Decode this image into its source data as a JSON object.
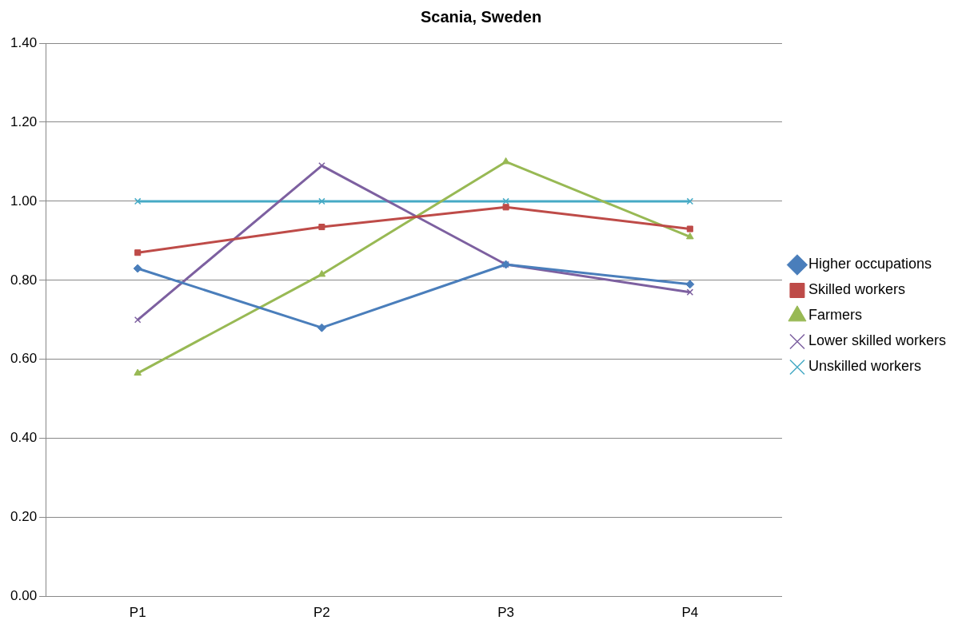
{
  "chart_data": {
    "type": "line",
    "title": "Scania, Sweden",
    "categories": [
      "P1",
      "P2",
      "P3",
      "P4"
    ],
    "series": [
      {
        "name": "Higher occupations",
        "color": "#4a7ebb",
        "marker": "diamond",
        "values": [
          0.83,
          0.68,
          0.84,
          0.79
        ]
      },
      {
        "name": "Skilled workers",
        "color": "#be4b48",
        "marker": "square",
        "values": [
          0.87,
          0.935,
          0.985,
          0.93
        ]
      },
      {
        "name": "Farmers",
        "color": "#98b954",
        "marker": "triangle",
        "values": [
          0.565,
          0.815,
          1.1,
          0.91
        ]
      },
      {
        "name": "Lower skilled workers",
        "color": "#7d60a0",
        "marker": "cross",
        "values": [
          0.7,
          1.09,
          0.84,
          0.77
        ]
      },
      {
        "name": "Unskilled workers",
        "color": "#46aac5",
        "marker": "cross",
        "values": [
          1,
          1,
          1,
          1
        ]
      }
    ],
    "ylim": [
      0,
      1.4
    ],
    "yticks": [
      {
        "value": 0,
        "label": "0.00"
      },
      {
        "value": 0.2,
        "label": "0.20"
      },
      {
        "value": 0.4,
        "label": "0.40"
      },
      {
        "value": 0.6,
        "label": "0.60"
      },
      {
        "value": 0.8,
        "label": "0.80"
      },
      {
        "value": 1,
        "label": "1.00"
      },
      {
        "value": 1.2,
        "label": "1.20"
      },
      {
        "value": 1.4,
        "label": "1.40"
      }
    ],
    "grid": "y",
    "legend": "right",
    "line_style": "solid"
  }
}
